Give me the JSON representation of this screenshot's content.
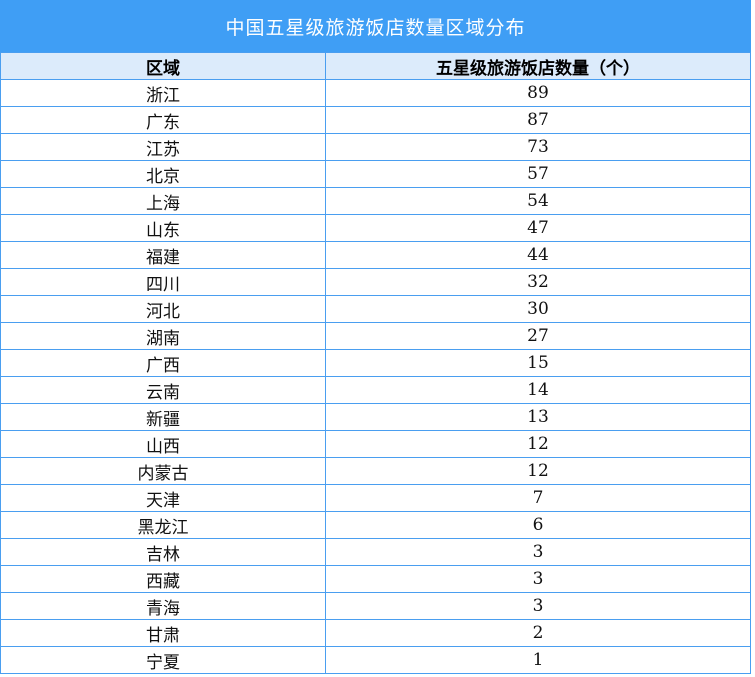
{
  "title": "中国五星级旅游饭店数量区域分布",
  "headers": [
    "区域",
    "五星级旅游饭店数量（个）"
  ],
  "rows": [
    [
      "浙江",
      "89"
    ],
    [
      "广东",
      "87"
    ],
    [
      "江苏",
      "73"
    ],
    [
      "北京",
      "57"
    ],
    [
      "上海",
      "54"
    ],
    [
      "山东",
      "47"
    ],
    [
      "福建",
      "44"
    ],
    [
      "四川",
      "32"
    ],
    [
      "河北",
      "30"
    ],
    [
      "湖南",
      "27"
    ],
    [
      "广西",
      "15"
    ],
    [
      "云南",
      "14"
    ],
    [
      "新疆",
      "13"
    ],
    [
      "山西",
      "12"
    ],
    [
      "内蒙古",
      "12"
    ],
    [
      "天津",
      "7"
    ],
    [
      "黑龙江",
      "6"
    ],
    [
      "吉林",
      "3"
    ],
    [
      "西藏",
      "3"
    ],
    [
      "青海",
      "3"
    ],
    [
      "甘肃",
      "2"
    ],
    [
      "宁夏",
      "1"
    ]
  ],
  "colors": {
    "title_bg": "#3f9ef5",
    "header_bg": "#dcebfb",
    "border": "#4a9ef0"
  }
}
